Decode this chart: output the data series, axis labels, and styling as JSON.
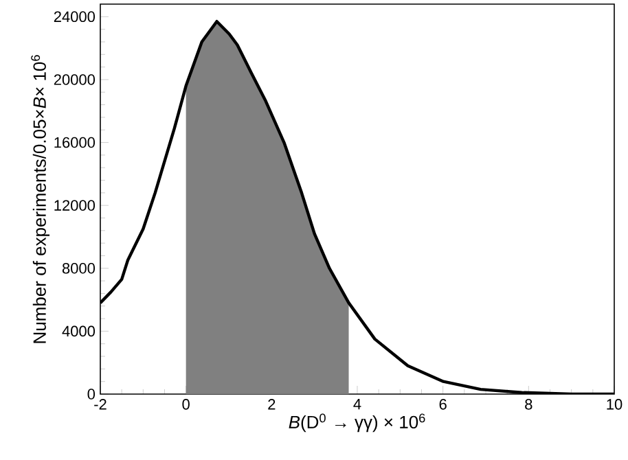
{
  "chart_data": {
    "type": "line",
    "xlabel": "*B*(D$^{0}$ → γγ) × 10$^{6}$",
    "ylabel": "Number of experiments/0.05×*B*× 10$^{6}$",
    "xlim": [
      -2,
      10
    ],
    "xticks": [
      -2,
      0,
      2,
      4,
      6,
      8,
      10
    ],
    "ylim": [
      0,
      24800
    ],
    "yticks": [
      0,
      4000,
      8000,
      12000,
      16000,
      20000,
      24000
    ],
    "series": [
      {
        "type": "area",
        "color": "#808080",
        "x": [
          0,
          0.37,
          0.72,
          1.01,
          1.2,
          1.53,
          1.85,
          2.29,
          2.7,
          3.0,
          3.35,
          3.8
        ],
        "values": [
          19600,
          22400,
          23700,
          22900,
          22200,
          20400,
          18700,
          16000,
          12800,
          10200,
          8000,
          5800
        ]
      },
      {
        "color": "#000000",
        "x": [
          -2,
          -1.75,
          -1.5,
          -1.36,
          -1,
          -0.72,
          -0.27,
          0,
          0.37,
          0.72,
          1.01,
          1.2,
          1.53,
          1.85,
          2.29,
          2.7,
          3.0,
          3.35,
          3.8,
          4.41,
          5.18,
          6.01,
          6.88,
          7.84,
          9.0,
          10
        ],
        "values": [
          5800,
          6500,
          7300,
          8500,
          10500,
          12800,
          16900,
          19600,
          22400,
          23700,
          22900,
          22200,
          20400,
          18700,
          16000,
          12800,
          10200,
          8000,
          5800,
          3500,
          1800,
          800,
          300,
          100,
          0,
          0
        ]
      }
    ]
  }
}
